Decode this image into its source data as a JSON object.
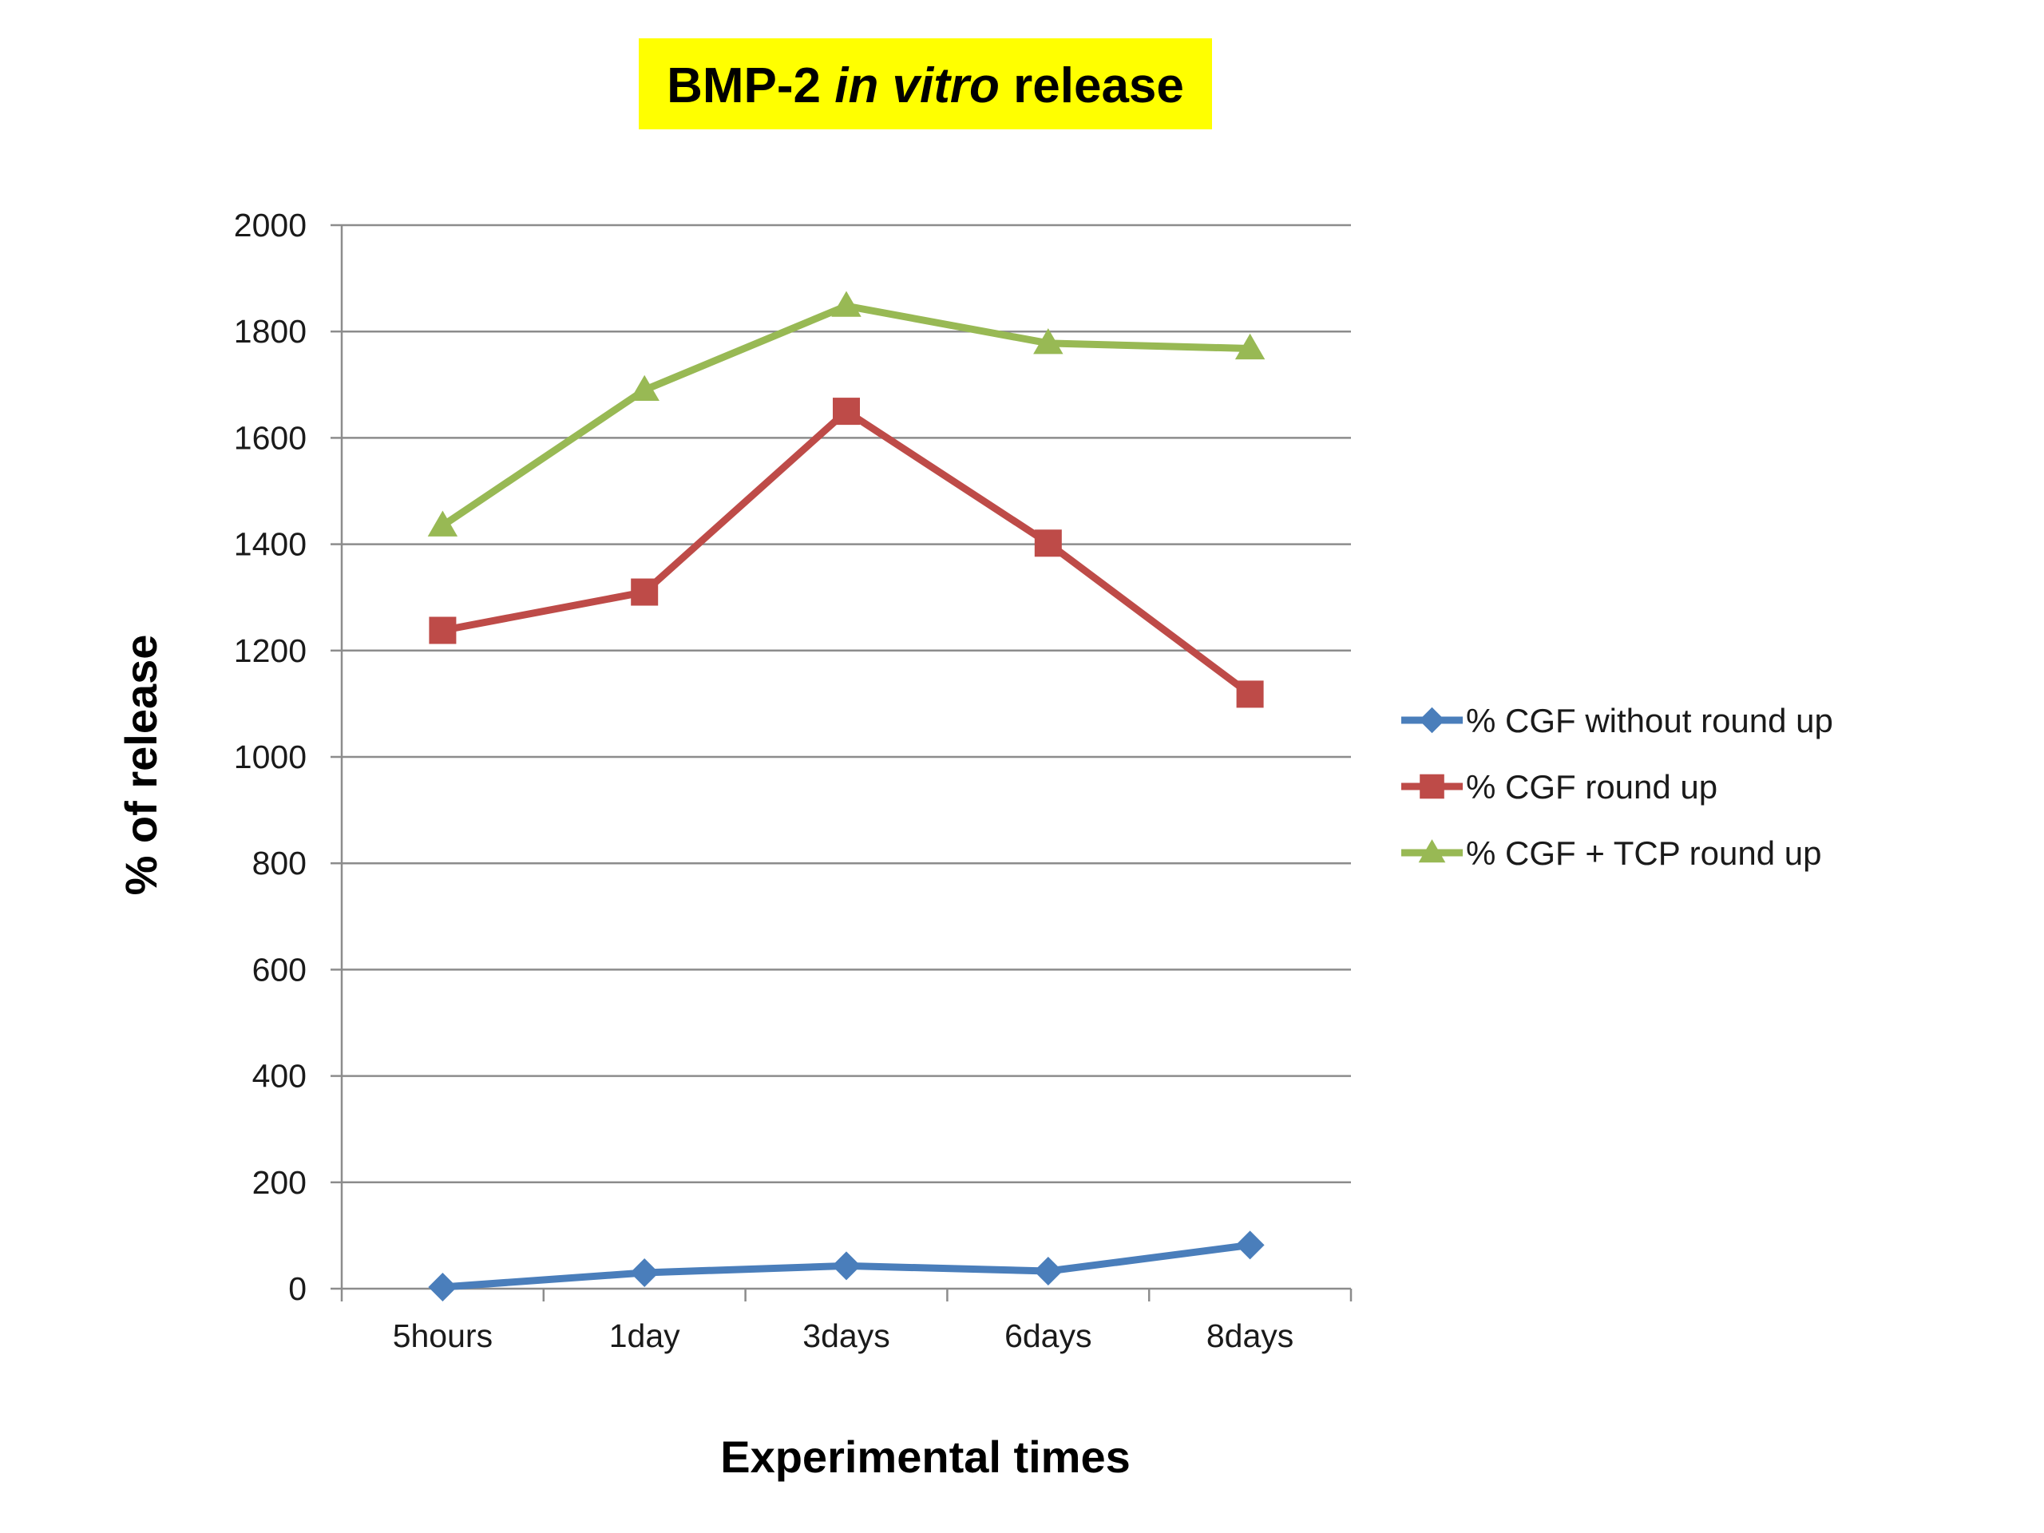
{
  "chart_data": {
    "type": "line",
    "title": {
      "part1": "BMP-2 ",
      "part2": "in vitro",
      "part3": " release"
    },
    "title_background": "#ffff00",
    "xlabel": "Experimental times",
    "ylabel": "% of release",
    "categories": [
      "5hours",
      "1day",
      "3days",
      "6days",
      "8days"
    ],
    "ylim": [
      0,
      2000
    ],
    "yticks": [
      0,
      200,
      400,
      600,
      800,
      1000,
      1200,
      1400,
      1600,
      1800,
      2000
    ],
    "grid": true,
    "legend_position": "right",
    "series": [
      {
        "name": "% CGF without round up",
        "values": [
          3,
          30,
          43,
          33,
          82
        ],
        "color": "#4a7ebb",
        "marker": "diamond"
      },
      {
        "name": "% CGF round up",
        "values": [
          1238,
          1310,
          1650,
          1402,
          1118
        ],
        "color": "#be4b48",
        "marker": "square"
      },
      {
        "name": "% CGF + TCP round up",
        "values": [
          1435,
          1690,
          1848,
          1778,
          1768
        ],
        "color": "#98b954",
        "marker": "triangle"
      }
    ]
  }
}
